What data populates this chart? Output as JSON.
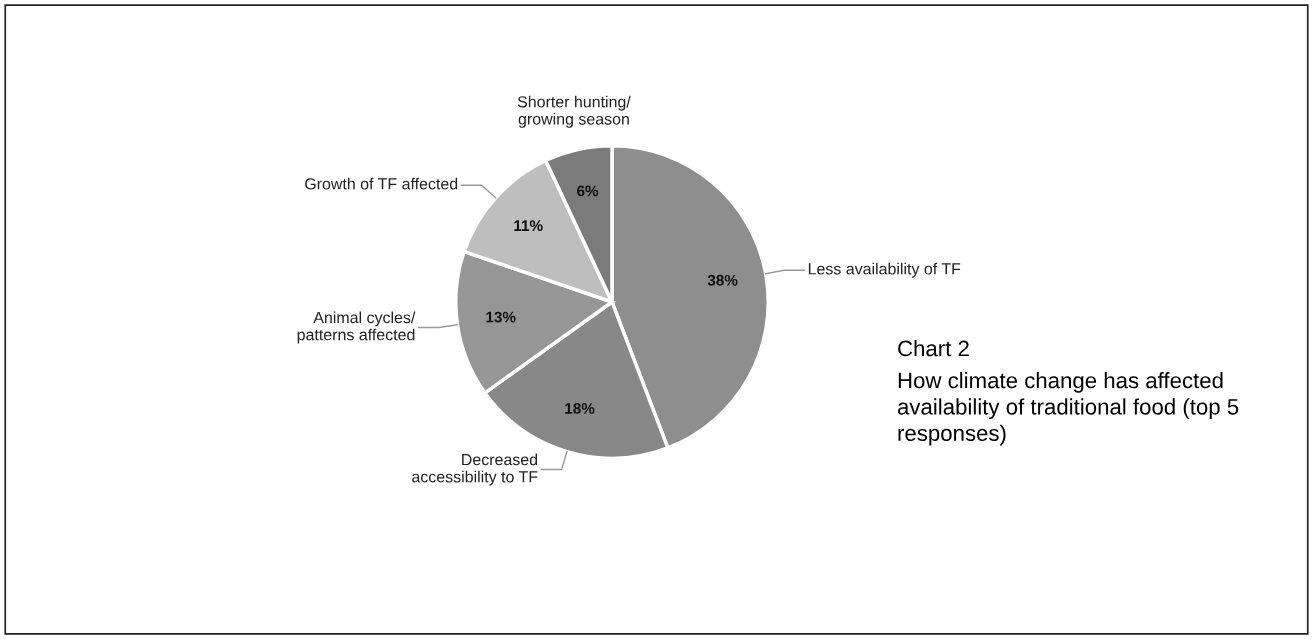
{
  "chart_data": {
    "type": "pie",
    "title": "Chart 2",
    "subtitle": "How climate change has affected availability of traditional food (top 5 responses)",
    "categories": [
      "Less availability of TF",
      "Decreased\naccessibility to TF",
      "Animal cycles/\npatterns affected",
      "Growth of TF affected",
      "Shorter hunting/\ngrowing season"
    ],
    "values": [
      38,
      18,
      13,
      11,
      6
    ],
    "value_labels": [
      "38%",
      "18%",
      "13%",
      "11%",
      "6%"
    ],
    "colors": [
      "#8e8e8e",
      "#888888",
      "#969696",
      "#bebebe",
      "#7b7b7b"
    ],
    "legend": false
  }
}
